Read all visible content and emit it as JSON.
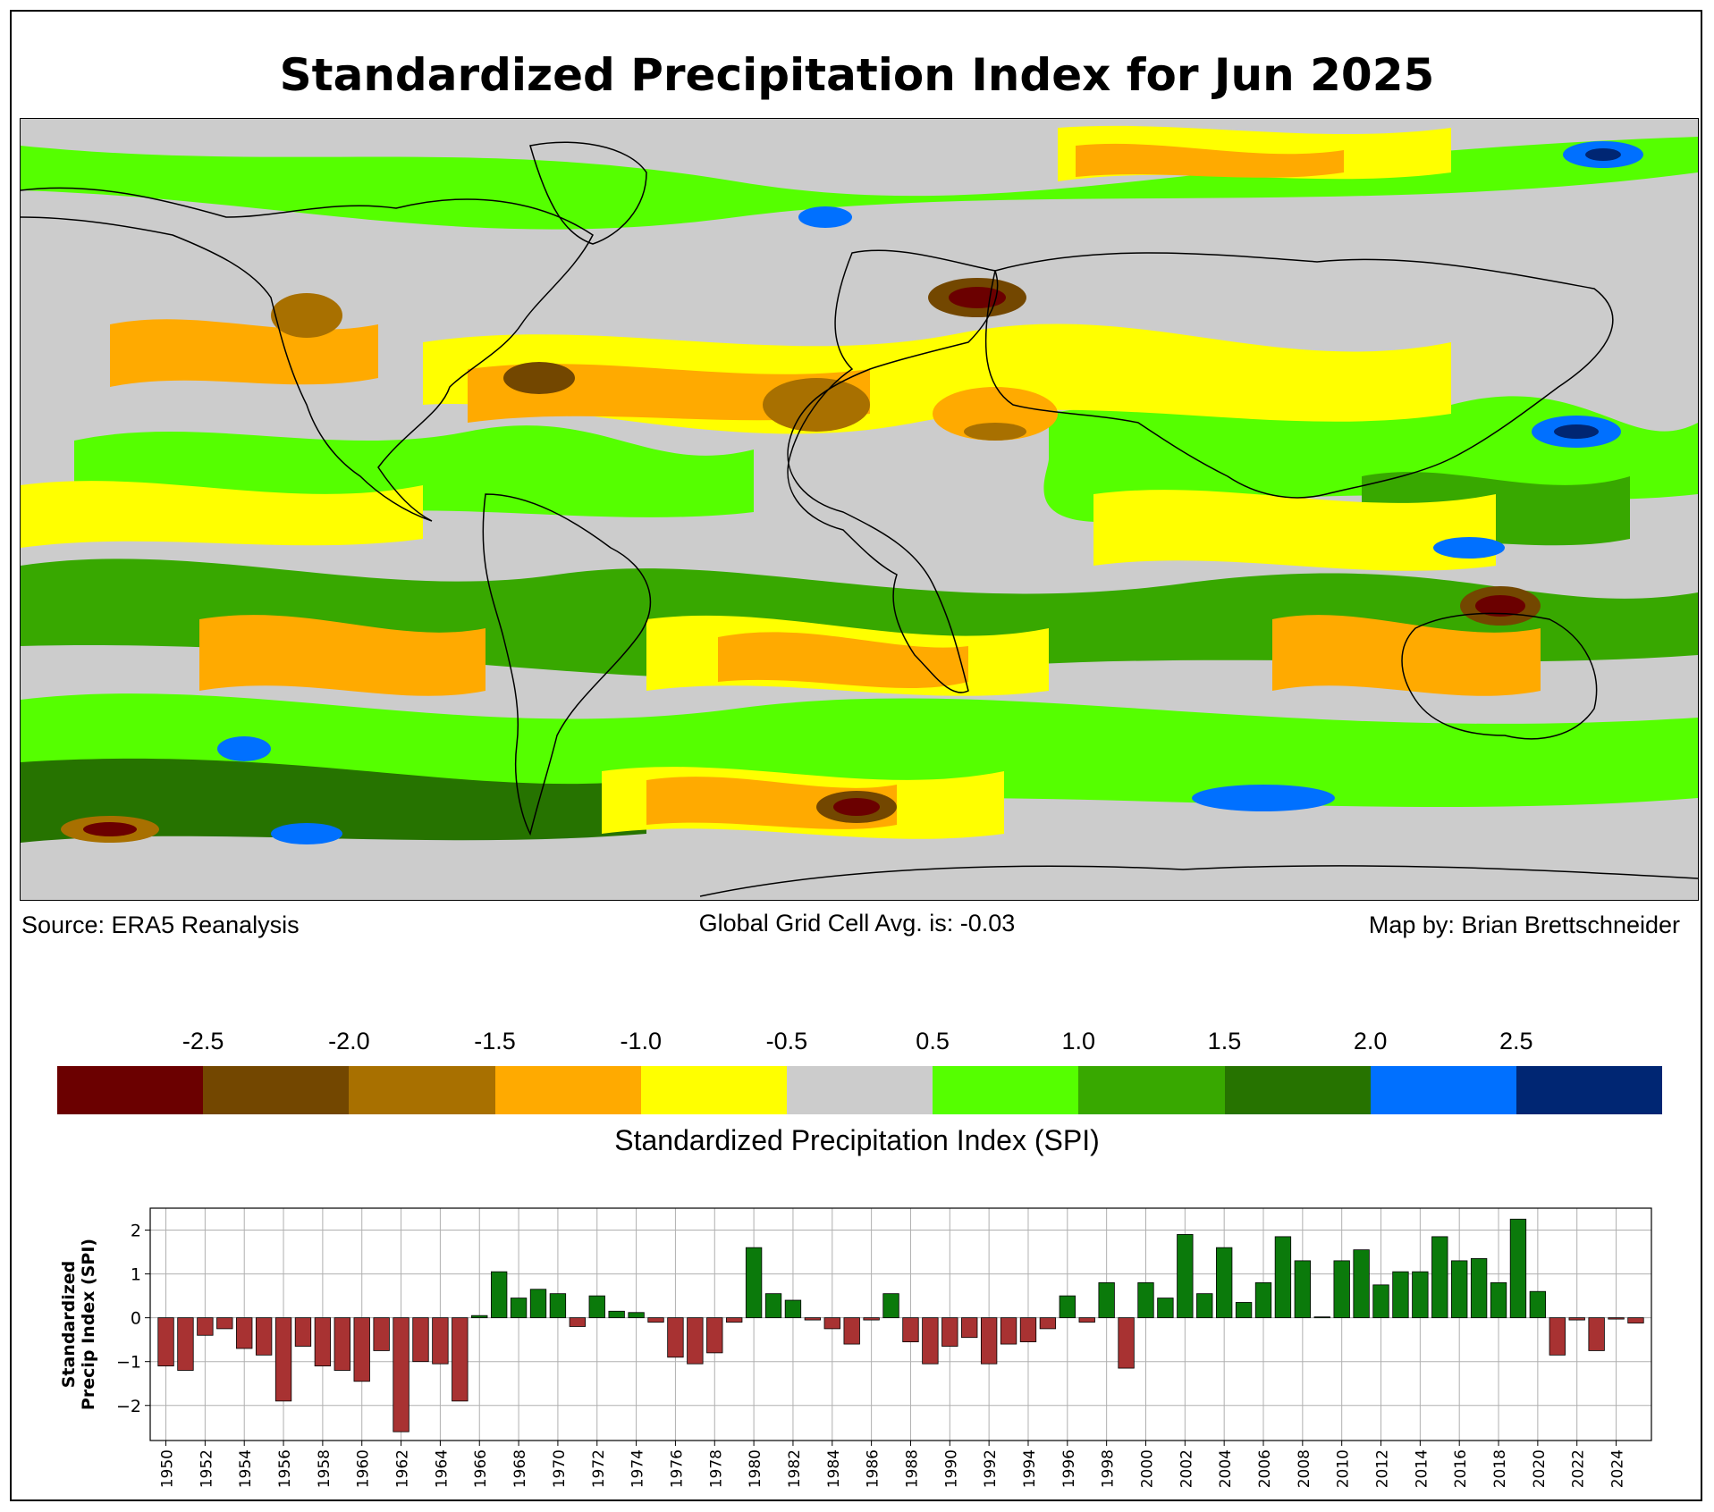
{
  "title": "Standardized Precipitation Index for Jun 2025",
  "captions": {
    "source": "Source: ERA5 Reanalysis",
    "average": "Global Grid Cell Avg. is: -0.03",
    "credit": "Map by: Brian Brettschneider"
  },
  "colorbar": {
    "label": "Standardized Precipitation Index (SPI)",
    "ticks": [
      "-2.5",
      "-2.0",
      "-1.5",
      "-1.0",
      "-0.5",
      "0.5",
      "1.0",
      "1.5",
      "2.0",
      "2.5"
    ],
    "colors": [
      "#6b0000",
      "#734700",
      "#a87000",
      "#ffaa00",
      "#ffff00",
      "#cccccc",
      "#55ff00",
      "#38a800",
      "#267300",
      "#0070ff",
      "#002673"
    ]
  },
  "map_legend_colors": {
    "very_dry": "#6b0000",
    "dry": "#a87000",
    "moderately_dry": "#ffaa00",
    "slightly_dry": "#ffff00",
    "near_normal": "#cccccc",
    "slightly_wet": "#55ff00",
    "wet": "#38a800",
    "very_wet": "#267300",
    "extremely_wet": "#0070ff"
  },
  "chart_data": {
    "type": "bar",
    "ylabel": "Standardized Precip Index (SPI)",
    "ylim": [
      -2.8,
      2.5
    ],
    "yticks": [
      -2,
      -1,
      0,
      1,
      2
    ],
    "grid": true,
    "x": [
      1950,
      1951,
      1952,
      1953,
      1954,
      1955,
      1956,
      1957,
      1958,
      1959,
      1960,
      1961,
      1962,
      1963,
      1964,
      1965,
      1966,
      1967,
      1968,
      1969,
      1970,
      1971,
      1972,
      1973,
      1974,
      1975,
      1976,
      1977,
      1978,
      1979,
      1980,
      1981,
      1982,
      1983,
      1984,
      1985,
      1986,
      1987,
      1988,
      1989,
      1990,
      1991,
      1992,
      1993,
      1994,
      1995,
      1996,
      1997,
      1998,
      1999,
      2000,
      2001,
      2002,
      2003,
      2004,
      2005,
      2006,
      2007,
      2008,
      2009,
      2010,
      2011,
      2012,
      2013,
      2014,
      2015,
      2016,
      2017,
      2018,
      2019,
      2020,
      2021,
      2022,
      2023,
      2024,
      2025
    ],
    "values": [
      -1.1,
      -1.2,
      -0.4,
      -0.25,
      -0.7,
      -0.85,
      -1.9,
      -0.65,
      -1.1,
      -1.2,
      -1.45,
      -0.75,
      -2.6,
      -1.0,
      -1.05,
      -1.9,
      0.05,
      1.05,
      0.45,
      0.65,
      0.55,
      -0.2,
      0.5,
      0.15,
      0.12,
      -0.1,
      -0.9,
      -1.05,
      -0.8,
      -0.1,
      1.6,
      0.55,
      0.4,
      -0.05,
      -0.25,
      -0.6,
      -0.05,
      0.55,
      -0.55,
      -1.05,
      -0.65,
      -0.45,
      -1.05,
      -0.6,
      -0.55,
      -0.25,
      0.5,
      -0.1,
      0.8,
      -1.15,
      0.8,
      0.45,
      1.9,
      0.55,
      1.6,
      0.35,
      0.8,
      1.85,
      1.3,
      0.02,
      1.3,
      1.55,
      0.75,
      1.05,
      1.05,
      1.85,
      1.3,
      1.35,
      0.8,
      2.25,
      0.6,
      -0.85,
      -0.05,
      -0.75,
      -0.03,
      -0.12
    ],
    "xticklabels": [
      "1950",
      "1952",
      "1954",
      "1956",
      "1958",
      "1960",
      "1962",
      "1964",
      "1966",
      "1968",
      "1970",
      "1972",
      "1974",
      "1976",
      "1978",
      "1980",
      "1982",
      "1984",
      "1986",
      "1988",
      "1990",
      "1992",
      "1994",
      "1996",
      "1998",
      "2000",
      "2002",
      "2004",
      "2006",
      "2008",
      "2010",
      "2012",
      "2014",
      "2016",
      "2018",
      "2020",
      "2022",
      "2024"
    ],
    "positive_color": "#0b7a0b",
    "negative_color": "#a83232"
  }
}
